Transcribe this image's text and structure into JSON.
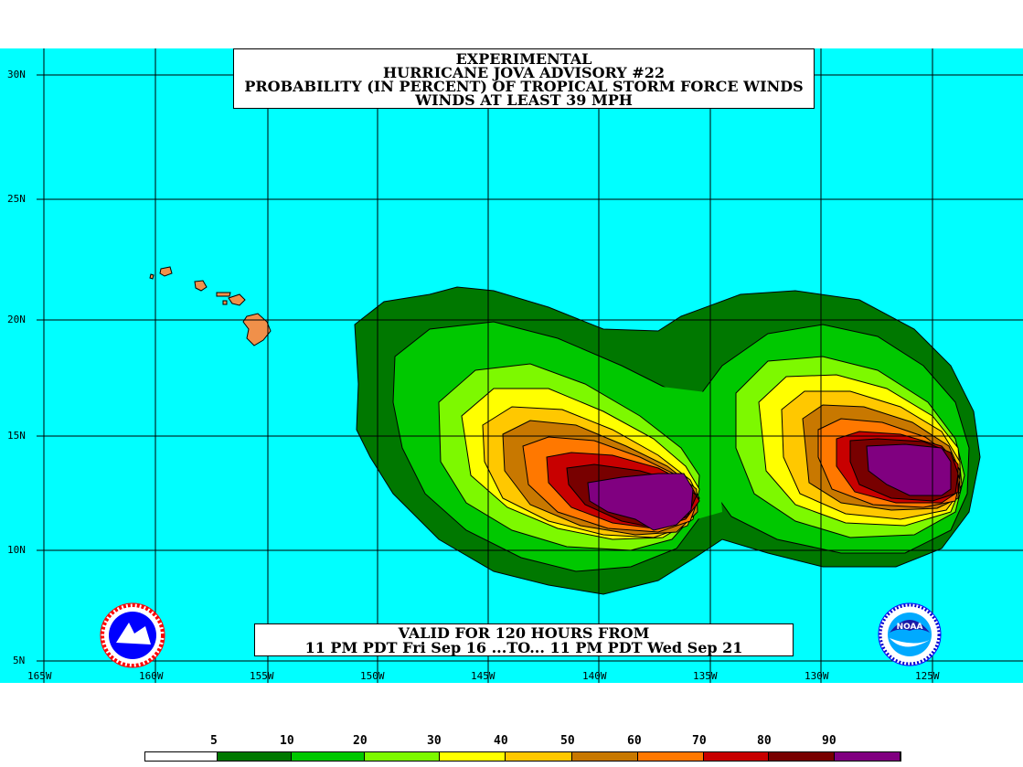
{
  "title": {
    "line1": "EXPERIMENTAL",
    "line2": "HURRICANE JOVA ADVISORY #22",
    "line3": "PROBABILITY (IN PERCENT) OF TROPICAL STORM FORCE WINDS",
    "line4": "WINDS AT LEAST 39 MPH"
  },
  "valid": {
    "line1": "VALID FOR 120 HOURS FROM",
    "line2": "11 PM PDT Fri Sep 16 ...TO... 11 PM PDT Wed Sep 21"
  },
  "lat_labels": [
    "30N",
    "25N",
    "20N",
    "15N",
    "10N",
    "5N"
  ],
  "lon_labels": [
    "165W",
    "160W",
    "155W",
    "150W",
    "145W",
    "140W",
    "135W",
    "130W",
    "125W"
  ],
  "legend": {
    "labels": [
      "5",
      "10",
      "20",
      "30",
      "40",
      "50",
      "60",
      "70",
      "80",
      "90"
    ],
    "colors": [
      "#ffffff",
      "#007800",
      "#00c800",
      "#7df900",
      "#ffff00",
      "#ffc800",
      "#c87800",
      "#ff7800",
      "#c80000",
      "#780000",
      "#800080"
    ]
  },
  "colors": {
    "ocean": "#00ffff",
    "land": "#f0904a",
    "grid": "#000000"
  },
  "logos": {
    "left": "NWS logo",
    "right": "NOAA logo",
    "noaa_text": "NOAA"
  }
}
